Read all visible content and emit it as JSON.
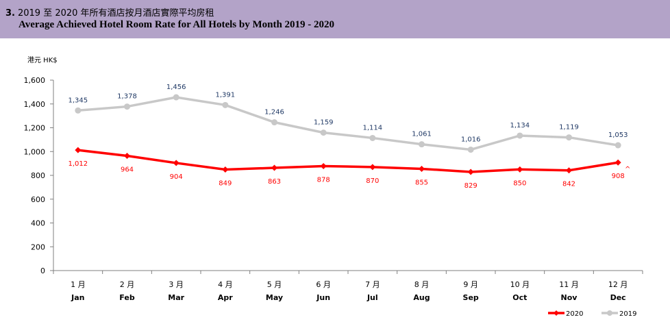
{
  "header": {
    "number": "3.",
    "title_zh": "2019 至 2020 年所有酒店按月酒店實際平均房租",
    "title_en": "Average Achieved Hotel Room Rate for All Hotels by Month 2019 - 2020"
  },
  "colors": {
    "header_bg": "#b3a3c8",
    "series_2020": "#ff0000",
    "series_2019": "#c8c8c8",
    "label_2020": "#ff0000",
    "label_2019": "#1f3864"
  },
  "chart_data": {
    "type": "line",
    "ylabel": "港元 HK$",
    "ylim": [
      0,
      1600
    ],
    "yticks": [
      "0",
      "200",
      "400",
      "600",
      "800",
      "1,000",
      "1,200",
      "1,400",
      "1,600"
    ],
    "ytick_values": [
      0,
      200,
      400,
      600,
      800,
      1000,
      1200,
      1400,
      1600
    ],
    "categories_zh": [
      "1 月",
      "2 月",
      "3 月",
      "4 月",
      "5 月",
      "6 月",
      "7 月",
      "8 月",
      "9 月",
      "10 月",
      "11 月",
      "12 月"
    ],
    "categories": [
      "Jan",
      "Feb",
      "Mar",
      "Apr",
      "May",
      "Jun",
      "Jul",
      "Aug",
      "Sep",
      "Oct",
      "Nov",
      "Dec"
    ],
    "series": [
      {
        "name": "2020",
        "values": [
          1012,
          964,
          904,
          849,
          863,
          878,
          870,
          855,
          829,
          850,
          842,
          908
        ],
        "labels": [
          "1,012",
          "964",
          "904",
          "849",
          "863",
          "878",
          "870",
          "855",
          "829",
          "850",
          "842",
          "908"
        ]
      },
      {
        "name": "2019",
        "values": [
          1345,
          1378,
          1456,
          1391,
          1246,
          1159,
          1114,
          1061,
          1016,
          1134,
          1119,
          1053
        ],
        "labels": [
          "1,345",
          "1,378",
          "1,456",
          "1,391",
          "1,246",
          "1,159",
          "1,114",
          "1,061",
          "1,016",
          "1,134",
          "1,119",
          "1,053"
        ]
      }
    ],
    "annotation": "^",
    "legend_position": "bottom-right",
    "grid": false
  }
}
